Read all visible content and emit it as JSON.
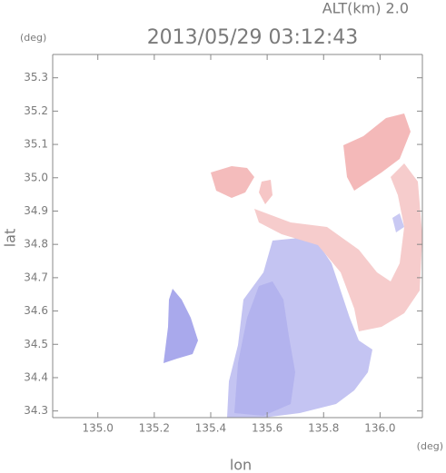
{
  "chart_data": {
    "type": "radar-map",
    "title": "2013/05/29 03:12:43",
    "annotation": "ALT(km) 2.0",
    "ylabel": "lat",
    "xlabel": "lon",
    "y_unit": "(deg)",
    "x_unit": "(deg)",
    "xlim": [
      134.84,
      136.15
    ],
    "ylim": [
      34.28,
      35.37
    ],
    "xticks": [
      {
        "value": 135,
        "label": "135.0"
      },
      135.2,
      135.4,
      135.6,
      135.8,
      {
        "value": 136,
        "label": "136.0"
      }
    ],
    "yticks": [
      34.3,
      34.4,
      34.5,
      34.6,
      34.7,
      34.8,
      34.9,
      {
        "value": 35,
        "label": "35.0"
      },
      35.1,
      35.2,
      35.3
    ]
  }
}
